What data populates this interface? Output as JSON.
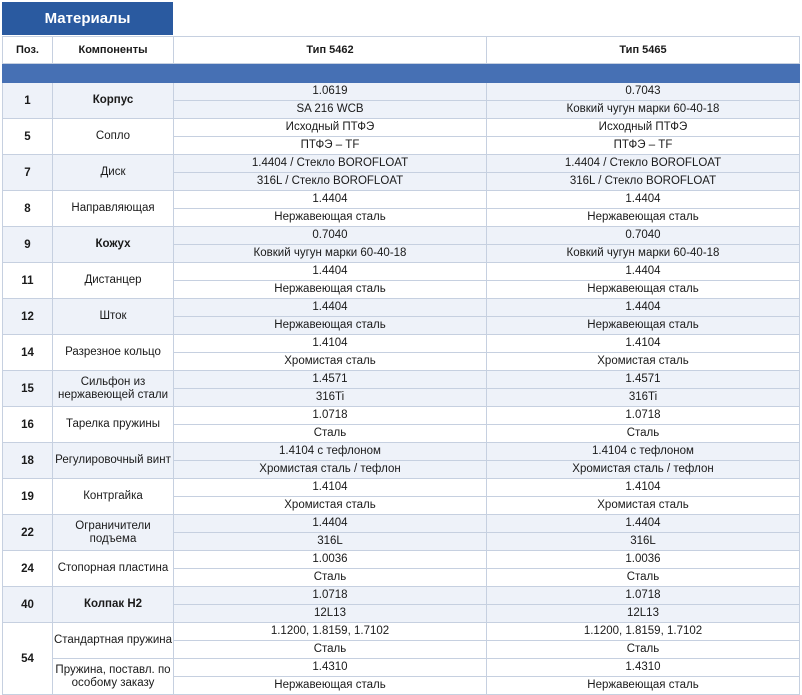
{
  "title": "Материалы",
  "headers": {
    "pos": "Поз.",
    "components": "Компоненты",
    "type_a": "Тип 5462",
    "type_b": "Тип 5465"
  },
  "rows": [
    {
      "pos": "1",
      "component": "Корпус",
      "bold": true,
      "a": [
        "1.0619",
        "SA 216 WCB"
      ],
      "b": [
        "0.7043",
        "Ковкий чугун марки 60-40-18"
      ]
    },
    {
      "pos": "5",
      "component": "Сопло",
      "bold": false,
      "a": [
        "Исходный ПТФЭ",
        "ПТФЭ – TF"
      ],
      "b": [
        "Исходный ПТФЭ",
        "ПТФЭ – TF"
      ]
    },
    {
      "pos": "7",
      "component": "Диск",
      "bold": false,
      "a": [
        "1.4404 / Стекло BOROFLOAT",
        "316L / Стекло BOROFLOAT"
      ],
      "b": [
        "1.4404 / Стекло BOROFLOAT",
        "316L / Стекло BOROFLOAT"
      ]
    },
    {
      "pos": "8",
      "component": "Направляющая",
      "bold": false,
      "a": [
        "1.4404",
        "Нержавеющая сталь"
      ],
      "b": [
        "1.4404",
        "Нержавеющая сталь"
      ]
    },
    {
      "pos": "9",
      "component": "Кожух",
      "bold": true,
      "a": [
        "0.7040",
        "Ковкий чугун марки 60-40-18"
      ],
      "b": [
        "0.7040",
        "Ковкий чугун марки 60-40-18"
      ]
    },
    {
      "pos": "11",
      "component": "Дистанцер",
      "bold": false,
      "a": [
        "1.4404",
        "Нержавеющая сталь"
      ],
      "b": [
        "1.4404",
        "Нержавеющая сталь"
      ]
    },
    {
      "pos": "12",
      "component": "Шток",
      "bold": false,
      "a": [
        "1.4404",
        "Нержавеющая сталь"
      ],
      "b": [
        "1.4404",
        "Нержавеющая сталь"
      ]
    },
    {
      "pos": "14",
      "component": "Разрезное кольцо",
      "bold": false,
      "a": [
        "1.4104",
        "Хромистая сталь"
      ],
      "b": [
        "1.4104",
        "Хромистая сталь"
      ]
    },
    {
      "pos": "15",
      "component": "Сильфон из нержавеющей стали",
      "bold": false,
      "a": [
        "1.4571",
        "316Ti"
      ],
      "b": [
        "1.4571",
        "316Ti"
      ]
    },
    {
      "pos": "16",
      "component": "Тарелка пружины",
      "bold": false,
      "a": [
        "1.0718",
        "Сталь"
      ],
      "b": [
        "1.0718",
        "Сталь"
      ]
    },
    {
      "pos": "18",
      "component": "Регулировочный винт",
      "bold": false,
      "a": [
        "1.4104 с тефлоном",
        "Хромистая сталь / тефлон"
      ],
      "b": [
        "1.4104 с тефлоном",
        "Хромистая сталь / тефлон"
      ]
    },
    {
      "pos": "19",
      "component": "Контргайка",
      "bold": false,
      "a": [
        "1.4104",
        "Хромистая сталь"
      ],
      "b": [
        "1.4104",
        "Хромистая сталь"
      ]
    },
    {
      "pos": "22",
      "component": "Ограничители подъема",
      "bold": false,
      "a": [
        "1.4404",
        "316L"
      ],
      "b": [
        "1.4404",
        "316L"
      ]
    },
    {
      "pos": "24",
      "component": "Стопорная пластина",
      "bold": false,
      "a": [
        "1.0036",
        "Сталь"
      ],
      "b": [
        "1.0036",
        "Сталь"
      ]
    },
    {
      "pos": "40",
      "component": "Колпак H2",
      "bold": true,
      "a": [
        "1.0718",
        "12L13"
      ],
      "b": [
        "1.0718",
        "12L13"
      ]
    }
  ],
  "row54": {
    "pos": "54",
    "subrows": [
      {
        "component": "Стандартная пружина",
        "a": [
          "1.1200, 1.8159, 1.7102",
          "Сталь"
        ],
        "b": [
          "1.1200, 1.8159, 1.7102",
          "Сталь"
        ]
      },
      {
        "component": "Пружина, поставл. по особому заказу",
        "a": [
          "1.4310",
          "Нержавеющая сталь"
        ],
        "b": [
          "1.4310",
          "Нержавеющая сталь"
        ]
      }
    ]
  }
}
